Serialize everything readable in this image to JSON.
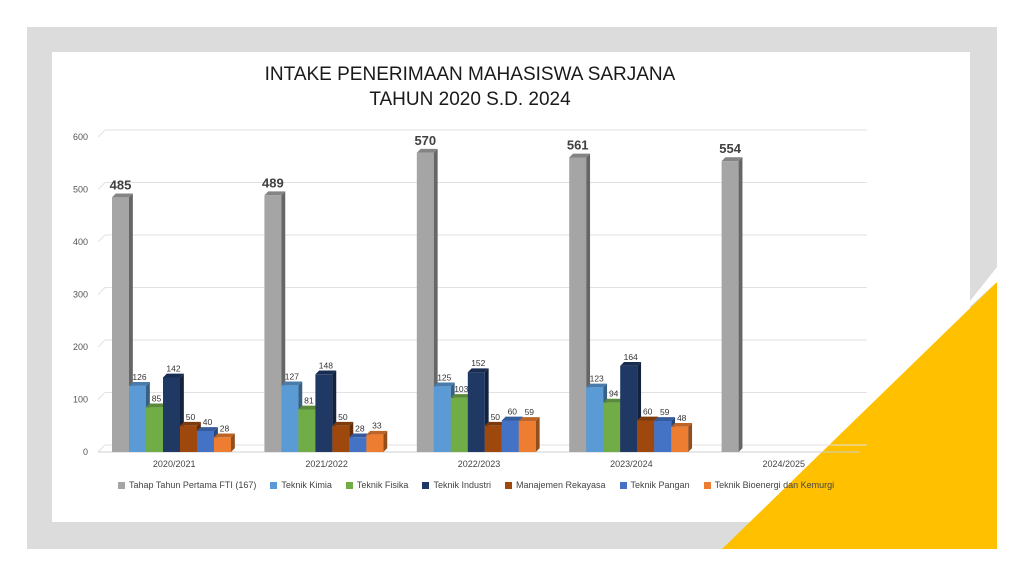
{
  "decor": {
    "frame_color": "#dcdcdc",
    "accent_color": "#ffc000"
  },
  "chart_data": {
    "type": "bar",
    "title": "INTAKE  PENERIMAAN MAHASISWA SARJANA",
    "subtitle": "TAHUN 2020 S.D. 2024",
    "xlabel": "",
    "ylabel": "",
    "ylim": [
      0,
      600
    ],
    "yticks": [
      0,
      100,
      200,
      300,
      400,
      500,
      600
    ],
    "grid": true,
    "legend_position": "bottom",
    "categories": [
      "2020/2021",
      "2021/2022",
      "2022/2023",
      "2023/2024",
      "2024/2025"
    ],
    "series": [
      {
        "name": "Tahap Tahun Pertama FTI (167)",
        "color": "#a5a5a5",
        "values": [
          485,
          489,
          570,
          561,
          554
        ]
      },
      {
        "name": "Teknik Kimia",
        "color": "#5b9bd5",
        "values": [
          126,
          127,
          125,
          123,
          null
        ]
      },
      {
        "name": "Teknik Fisika",
        "color": "#70ad47",
        "values": [
          85,
          81,
          103,
          94,
          null
        ]
      },
      {
        "name": "Teknik Industri",
        "color": "#1f3864",
        "values": [
          142,
          148,
          152,
          164,
          null
        ]
      },
      {
        "name": "Manajemen Rekayasa",
        "color": "#9e480e",
        "values": [
          50,
          50,
          50,
          60,
          null
        ]
      },
      {
        "name": "Teknik Pangan",
        "color": "#4472c4",
        "values": [
          40,
          28,
          60,
          59,
          null
        ]
      },
      {
        "name": "Teknik Bioenergi dan Kemurgi",
        "color": "#ed7d31",
        "values": [
          28,
          33,
          59,
          48,
          null
        ]
      }
    ],
    "data_labels": [
      [
        "485",
        "126",
        "85",
        "142",
        "50",
        "40",
        "28"
      ],
      [
        "489",
        "127",
        "81",
        "148",
        "50",
        "28",
        "33"
      ],
      [
        "570",
        "125",
        "103",
        "152",
        "50",
        "60",
        "59"
      ],
      [
        "561",
        "123",
        "94",
        "164",
        "60",
        "59",
        "48"
      ],
      [
        "554",
        "",
        "",
        "",
        "",
        "",
        ""
      ]
    ]
  }
}
